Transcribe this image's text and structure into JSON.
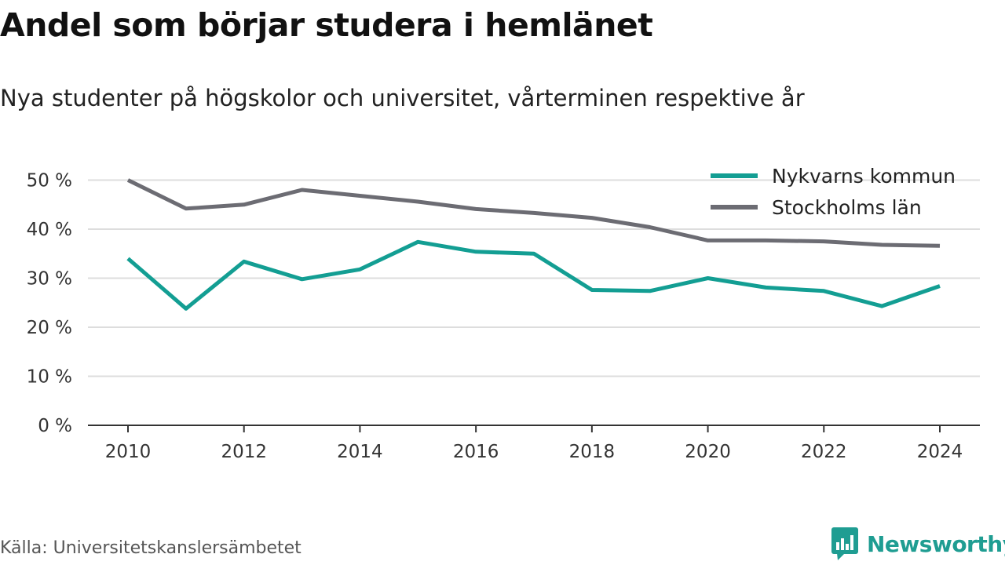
{
  "title": "Andel som börjar studera i hemlänet",
  "subtitle": "Nya studenter på högskolor och universitet, vårterminen respektive år",
  "source": "Källa: Universitetskanslersämbetet",
  "brand": {
    "name": "Newsworthy",
    "icon": "bar-chart-speech-bubble-icon",
    "color": "#1f9d92"
  },
  "chart_data": {
    "type": "line",
    "x": [
      2010,
      2011,
      2012,
      2013,
      2014,
      2015,
      2016,
      2017,
      2018,
      2019,
      2020,
      2021,
      2022,
      2023,
      2024
    ],
    "series": [
      {
        "name": "Nykvarns kommun",
        "color": "#139e93",
        "values": [
          34.0,
          23.8,
          33.4,
          29.8,
          31.8,
          37.4,
          35.4,
          35.0,
          27.6,
          27.4,
          30.0,
          28.1,
          27.4,
          24.3,
          28.4
        ]
      },
      {
        "name": "Stockholms län",
        "color": "#6c6c73",
        "values": [
          50.0,
          44.2,
          45.0,
          48.0,
          46.8,
          45.6,
          44.1,
          43.3,
          42.3,
          40.4,
          37.7,
          37.7,
          37.5,
          36.8,
          36.6
        ]
      }
    ],
    "y_ticks": [
      0,
      10,
      20,
      30,
      40,
      50
    ],
    "y_tick_labels": [
      "0 %",
      "10 %",
      "20 %",
      "30 %",
      "40 %",
      "50 %"
    ],
    "x_ticks": [
      2010,
      2012,
      2014,
      2016,
      2018,
      2020,
      2022,
      2024
    ],
    "x_tick_labels": [
      "2010",
      "2012",
      "2014",
      "2016",
      "2018",
      "2020",
      "2022",
      "2024"
    ],
    "ylim": [
      0,
      50
    ],
    "xlim": [
      2010,
      2024
    ],
    "grid": "horizontal",
    "legend": "top-right",
    "gridline_color": "#dddddd",
    "axis_color": "#333333"
  }
}
